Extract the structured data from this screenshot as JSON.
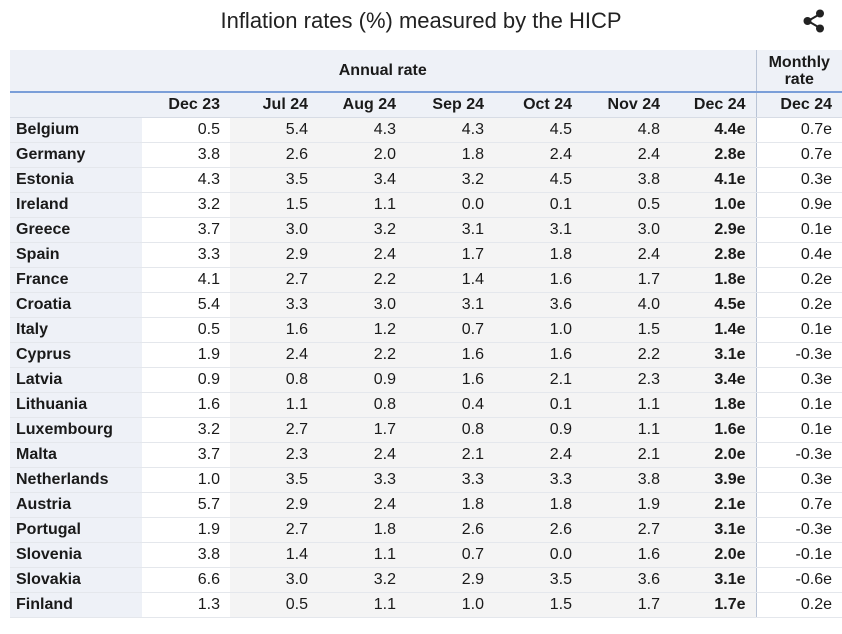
{
  "title": "Inflation rates (%) measured by the HICP",
  "share_icon": "share-icon",
  "table": {
    "annual_group_label": "Annual rate",
    "monthly_group_label": "Monthly rate",
    "columns": [
      "Dec 23",
      "Jul 24",
      "Aug 24",
      "Sep 24",
      "Oct 24",
      "Nov 24",
      "Dec 24",
      "Dec 24"
    ],
    "rows": [
      {
        "country": "Belgium",
        "values": [
          "0.5",
          "5.4",
          "4.3",
          "4.3",
          "4.5",
          "4.8",
          "4.4e",
          "0.7e"
        ]
      },
      {
        "country": "Germany",
        "values": [
          "3.8",
          "2.6",
          "2.0",
          "1.8",
          "2.4",
          "2.4",
          "2.8e",
          "0.7e"
        ]
      },
      {
        "country": "Estonia",
        "values": [
          "4.3",
          "3.5",
          "3.4",
          "3.2",
          "4.5",
          "3.8",
          "4.1e",
          "0.3e"
        ]
      },
      {
        "country": "Ireland",
        "values": [
          "3.2",
          "1.5",
          "1.1",
          "0.0",
          "0.1",
          "0.5",
          "1.0e",
          "0.9e"
        ]
      },
      {
        "country": "Greece",
        "values": [
          "3.7",
          "3.0",
          "3.2",
          "3.1",
          "3.1",
          "3.0",
          "2.9e",
          "0.1e"
        ]
      },
      {
        "country": "Spain",
        "values": [
          "3.3",
          "2.9",
          "2.4",
          "1.7",
          "1.8",
          "2.4",
          "2.8e",
          "0.4e"
        ]
      },
      {
        "country": "France",
        "values": [
          "4.1",
          "2.7",
          "2.2",
          "1.4",
          "1.6",
          "1.7",
          "1.8e",
          "0.2e"
        ]
      },
      {
        "country": "Croatia",
        "values": [
          "5.4",
          "3.3",
          "3.0",
          "3.1",
          "3.6",
          "4.0",
          "4.5e",
          "0.2e"
        ]
      },
      {
        "country": "Italy",
        "values": [
          "0.5",
          "1.6",
          "1.2",
          "0.7",
          "1.0",
          "1.5",
          "1.4e",
          "0.1e"
        ]
      },
      {
        "country": "Cyprus",
        "values": [
          "1.9",
          "2.4",
          "2.2",
          "1.6",
          "1.6",
          "2.2",
          "3.1e",
          "-0.3e"
        ]
      },
      {
        "country": "Latvia",
        "values": [
          "0.9",
          "0.8",
          "0.9",
          "1.6",
          "2.1",
          "2.3",
          "3.4e",
          "0.3e"
        ]
      },
      {
        "country": "Lithuania",
        "values": [
          "1.6",
          "1.1",
          "0.8",
          "0.4",
          "0.1",
          "1.1",
          "1.8e",
          "0.1e"
        ]
      },
      {
        "country": "Luxembourg",
        "values": [
          "3.2",
          "2.7",
          "1.7",
          "0.8",
          "0.9",
          "1.1",
          "1.6e",
          "0.1e"
        ]
      },
      {
        "country": "Malta",
        "values": [
          "3.7",
          "2.3",
          "2.4",
          "2.1",
          "2.4",
          "2.1",
          "2.0e",
          "-0.3e"
        ]
      },
      {
        "country": "Netherlands",
        "values": [
          "1.0",
          "3.5",
          "3.3",
          "3.3",
          "3.3",
          "3.8",
          "3.9e",
          "0.3e"
        ]
      },
      {
        "country": "Austria",
        "values": [
          "5.7",
          "2.9",
          "2.4",
          "1.8",
          "1.8",
          "1.9",
          "2.1e",
          "0.7e"
        ]
      },
      {
        "country": "Portugal",
        "values": [
          "1.9",
          "2.7",
          "1.8",
          "2.6",
          "2.6",
          "2.7",
          "3.1e",
          "-0.3e"
        ]
      },
      {
        "country": "Slovenia",
        "values": [
          "3.8",
          "1.4",
          "1.1",
          "0.7",
          "0.0",
          "1.6",
          "2.0e",
          "-0.1e"
        ]
      },
      {
        "country": "Slovakia",
        "values": [
          "6.6",
          "3.0",
          "3.2",
          "2.9",
          "3.5",
          "3.6",
          "3.1e",
          "-0.6e"
        ]
      },
      {
        "country": "Finland",
        "values": [
          "1.3",
          "0.5",
          "1.1",
          "1.0",
          "1.5",
          "1.7",
          "1.7e",
          "0.2e"
        ]
      }
    ]
  }
}
